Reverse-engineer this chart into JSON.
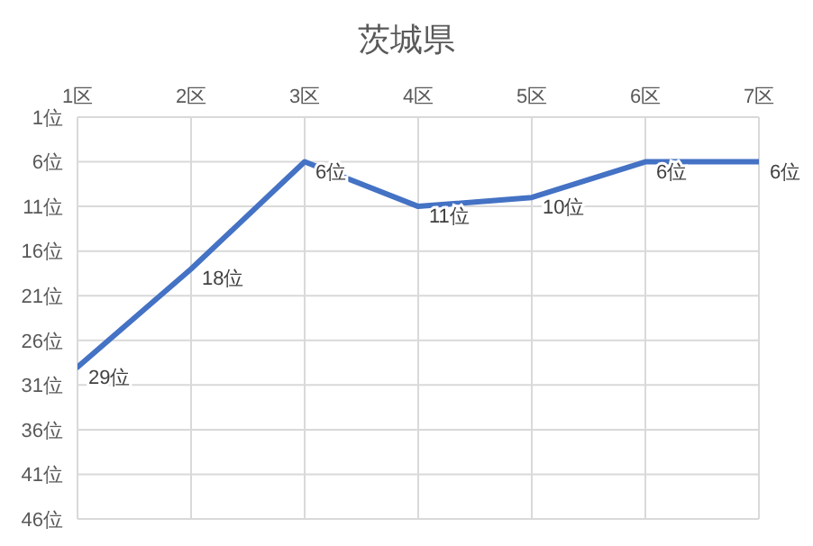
{
  "chart_data": {
    "type": "line",
    "title": "茨城県",
    "categories": [
      "1区",
      "2区",
      "3区",
      "4区",
      "5区",
      "6区",
      "7区"
    ],
    "series": [
      {
        "color": "#4472c4",
        "values": [
          29,
          18,
          6,
          11,
          10,
          6,
          6
        ],
        "value_labels": [
          "29位",
          "18位",
          "6位",
          "11位",
          "10位",
          "6位",
          "6位"
        ]
      }
    ],
    "ylim": [
      46,
      1
    ],
    "yticks": [
      {
        "value": 1,
        "label": "1位"
      },
      {
        "value": 6,
        "label": "6位"
      },
      {
        "value": 11,
        "label": "11位"
      },
      {
        "value": 16,
        "label": "16位"
      },
      {
        "value": 21,
        "label": "21位"
      },
      {
        "value": 26,
        "label": "26位"
      },
      {
        "value": 31,
        "label": "31位"
      },
      {
        "value": 36,
        "label": "36位"
      },
      {
        "value": 41,
        "label": "41位"
      },
      {
        "value": 46,
        "label": "46位"
      }
    ],
    "grid": true,
    "legend": false,
    "marker": "none",
    "line_style": "solid"
  }
}
